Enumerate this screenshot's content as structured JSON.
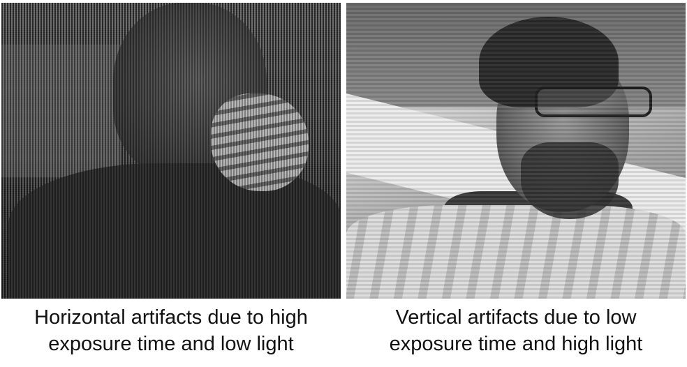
{
  "figure": {
    "panels": [
      {
        "caption_line1": "Horizontal artifacts due to high",
        "caption_line2": "exposure time and low light"
      },
      {
        "caption_line1": "Vertical artifacts due to low",
        "caption_line2": "exposure time and high light"
      }
    ]
  }
}
